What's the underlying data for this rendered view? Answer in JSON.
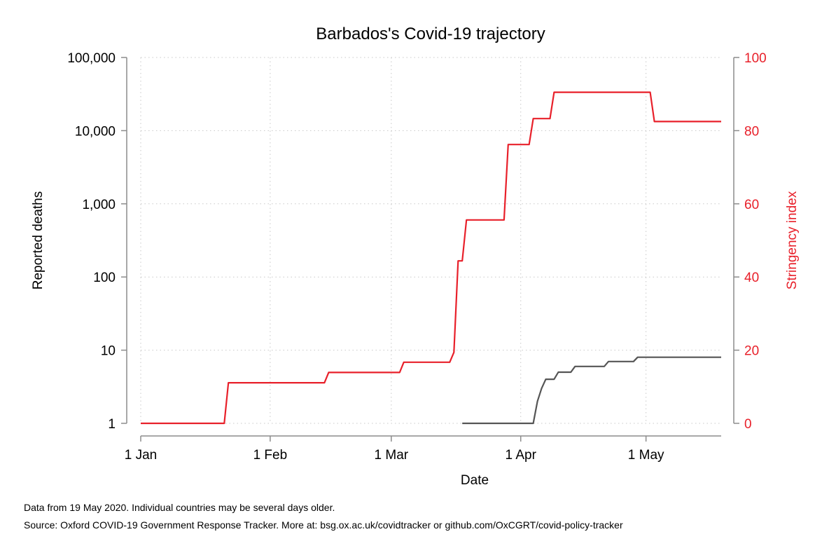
{
  "chart_data": {
    "type": "line",
    "title": "Barbados's Covid-19 trajectory",
    "xlabel": "Date",
    "ylabel_left": "Reported deaths",
    "ylabel_right": "Stringency index",
    "x_ticks": [
      {
        "date": "2020-01-01",
        "label": "1 Jan"
      },
      {
        "date": "2020-02-01",
        "label": "1 Feb"
      },
      {
        "date": "2020-03-01",
        "label": "1 Mar"
      },
      {
        "date": "2020-04-01",
        "label": "1 Apr"
      },
      {
        "date": "2020-05-01",
        "label": "1 May"
      }
    ],
    "xlim": [
      "2020-01-01",
      "2020-05-19"
    ],
    "y_left": {
      "scale": "log",
      "ylim": [
        1,
        100000
      ],
      "ticks": [
        1,
        10,
        100,
        1000,
        10000,
        100000
      ],
      "tick_labels": [
        "1",
        "10",
        "100",
        "1,000",
        "10,000",
        "100,000"
      ]
    },
    "y_right": {
      "scale": "linear",
      "ylim": [
        0,
        100
      ],
      "ticks": [
        0,
        20,
        40,
        60,
        80,
        100
      ],
      "tick_labels": [
        "0",
        "20",
        "40",
        "60",
        "80",
        "100"
      ],
      "color": "#e8202a"
    },
    "grid": true,
    "series": [
      {
        "axis": "right",
        "color": "#e8202a",
        "points": [
          [
            "2020-01-01",
            0
          ],
          [
            "2020-01-21",
            0
          ],
          [
            "2020-01-22",
            11.1
          ],
          [
            "2020-02-14",
            11.1
          ],
          [
            "2020-02-15",
            13.9
          ],
          [
            "2020-03-03",
            13.9
          ],
          [
            "2020-03-04",
            16.7
          ],
          [
            "2020-03-15",
            16.7
          ],
          [
            "2020-03-16",
            19.4
          ],
          [
            "2020-03-17",
            44.4
          ],
          [
            "2020-03-18",
            44.4
          ],
          [
            "2020-03-19",
            55.6
          ],
          [
            "2020-03-28",
            55.6
          ],
          [
            "2020-03-29",
            76.2
          ],
          [
            "2020-04-03",
            76.2
          ],
          [
            "2020-04-04",
            83.3
          ],
          [
            "2020-04-08",
            83.3
          ],
          [
            "2020-04-09",
            90.5
          ],
          [
            "2020-05-02",
            90.5
          ],
          [
            "2020-05-03",
            82.5
          ],
          [
            "2020-05-19",
            82.5
          ]
        ]
      },
      {
        "axis": "left",
        "color": "#555555",
        "points": [
          [
            "2020-03-18",
            1
          ],
          [
            "2020-04-04",
            1
          ],
          [
            "2020-04-05",
            2
          ],
          [
            "2020-04-06",
            3
          ],
          [
            "2020-04-07",
            4
          ],
          [
            "2020-04-09",
            4
          ],
          [
            "2020-04-10",
            5
          ],
          [
            "2020-04-13",
            5
          ],
          [
            "2020-04-14",
            6
          ],
          [
            "2020-04-21",
            6
          ],
          [
            "2020-04-22",
            7
          ],
          [
            "2020-04-28",
            7
          ],
          [
            "2020-04-29",
            8
          ],
          [
            "2020-05-19",
            8
          ]
        ]
      }
    ]
  },
  "notes": {
    "line1": "Data from 19 May 2020. Individual countries may be several days older.",
    "line2": "Source: Oxford COVID-19 Government Response Tracker. More at: bsg.ox.ac.uk/covidtracker or github.com/OxCGRT/covid-policy-tracker"
  }
}
